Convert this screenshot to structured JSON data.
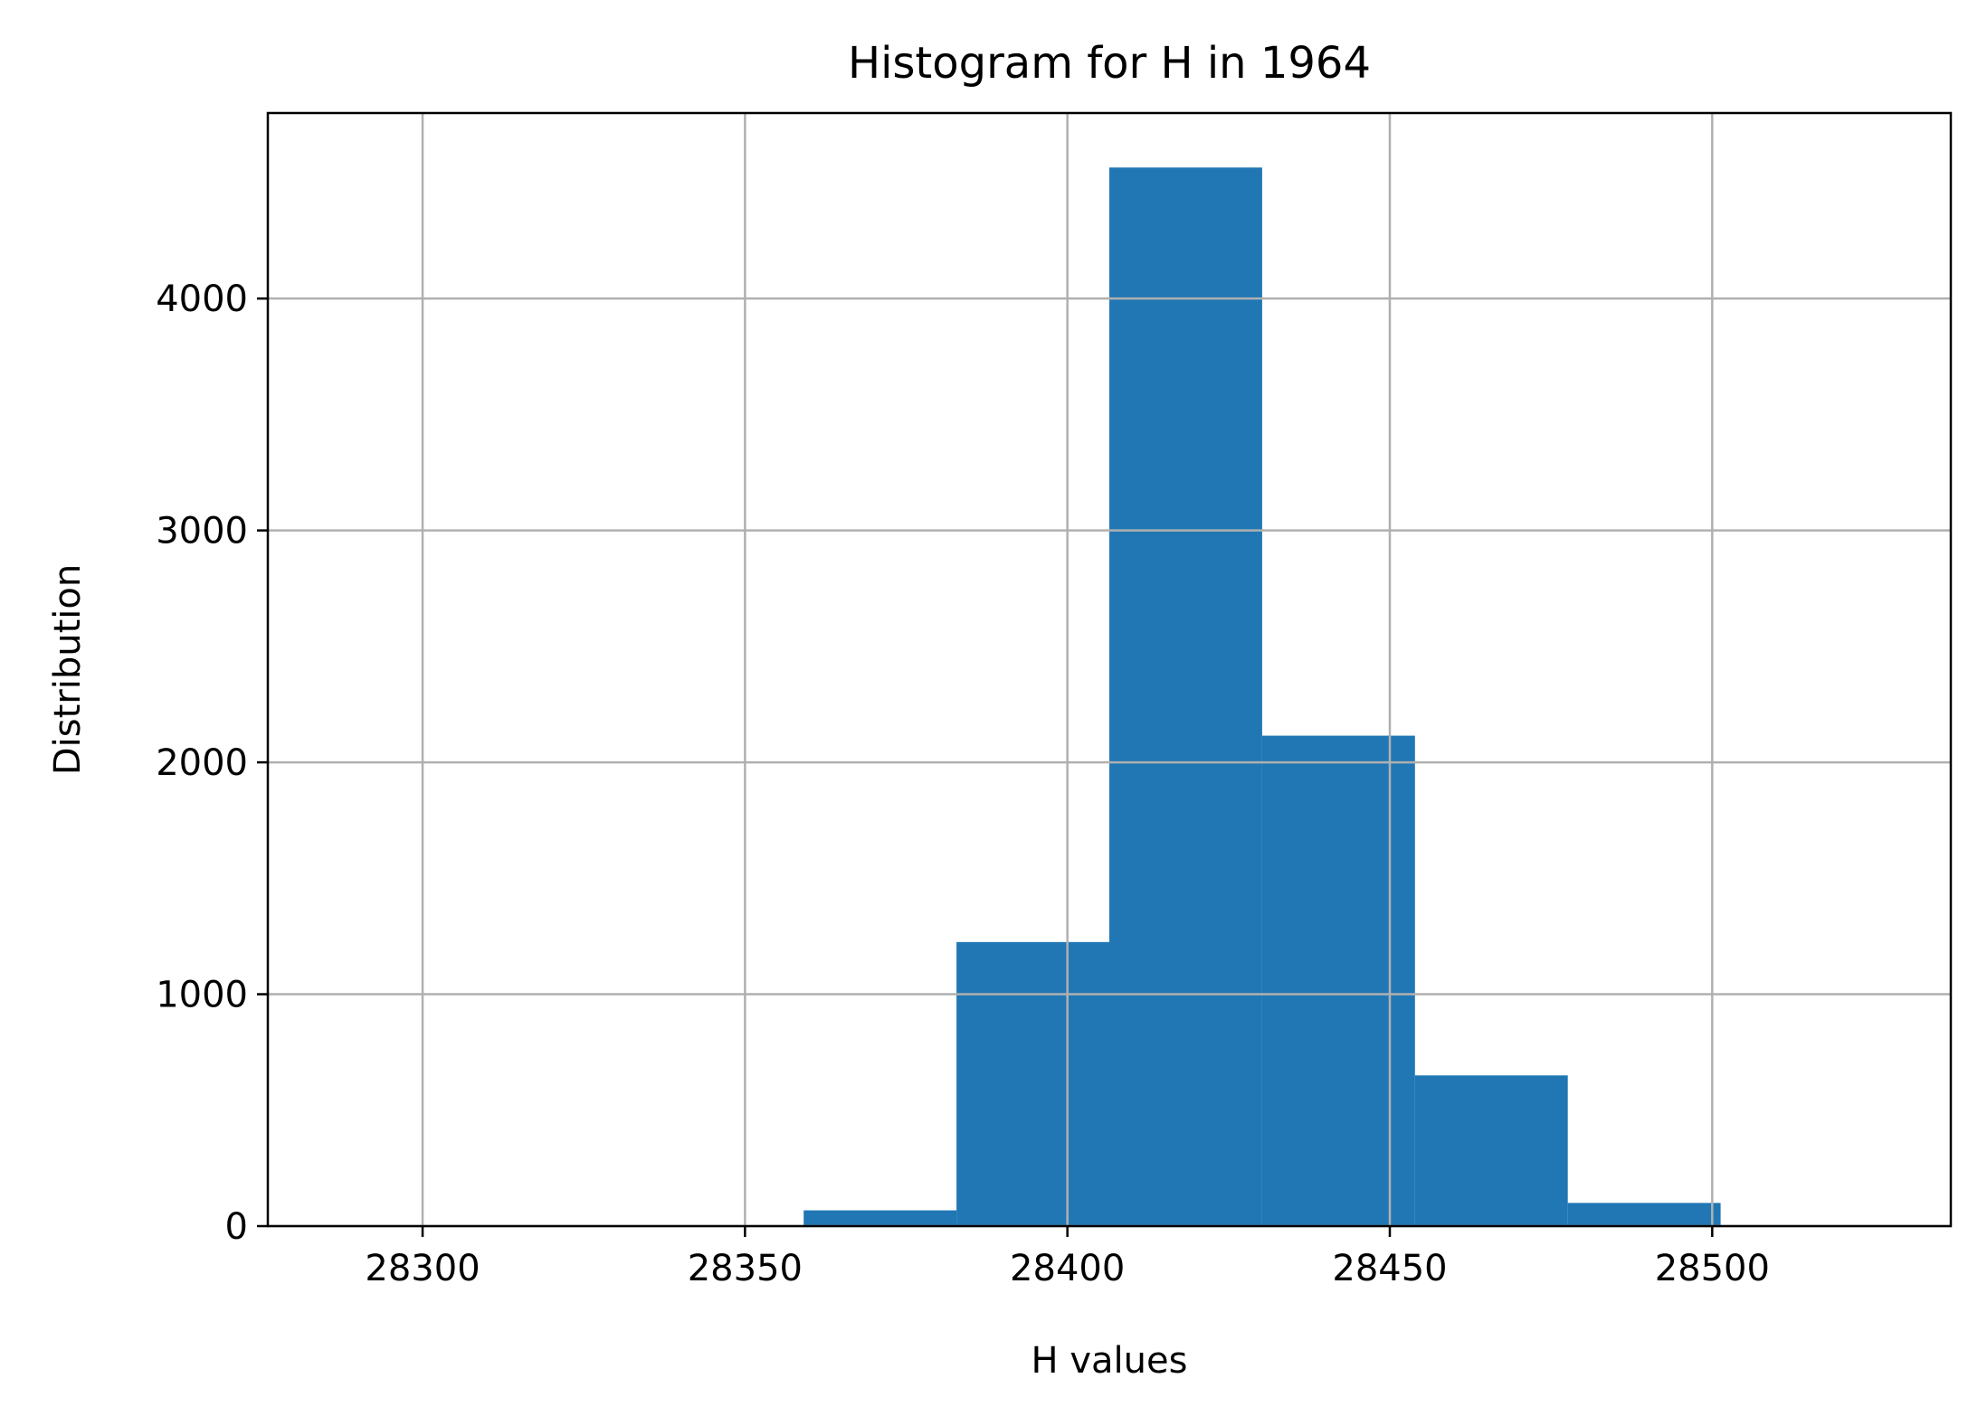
{
  "chart_data": {
    "type": "bar",
    "title": "Histogram for H in 1964",
    "xlabel": "H values",
    "ylabel": "Distribution",
    "bins": [
      {
        "x0": 28288,
        "x1": 28311.7,
        "count": 1
      },
      {
        "x0": 28311.7,
        "x1": 28335.4,
        "count": 0
      },
      {
        "x0": 28335.4,
        "x1": 28359.1,
        "count": 3
      },
      {
        "x0": 28359.1,
        "x1": 28382.8,
        "count": 68
      },
      {
        "x0": 28382.8,
        "x1": 28406.5,
        "count": 1225
      },
      {
        "x0": 28406.5,
        "x1": 28430.2,
        "count": 4565
      },
      {
        "x0": 28430.2,
        "x1": 28453.9,
        "count": 2115
      },
      {
        "x0": 28453.9,
        "x1": 28477.6,
        "count": 650
      },
      {
        "x0": 28477.6,
        "x1": 28501.3,
        "count": 100
      },
      {
        "x0": 28501.3,
        "x1": 28525,
        "count": 2
      }
    ],
    "xlim": [
      28276,
      28537
    ],
    "ylim": [
      0,
      4800
    ],
    "xticks": [
      28300,
      28350,
      28400,
      28450,
      28500
    ],
    "yticks": [
      0,
      1000,
      2000,
      3000,
      4000
    ],
    "grid": true,
    "colors": {
      "bar": "#2077b4",
      "grid": "#b0b0b0",
      "axis": "#000000"
    }
  }
}
